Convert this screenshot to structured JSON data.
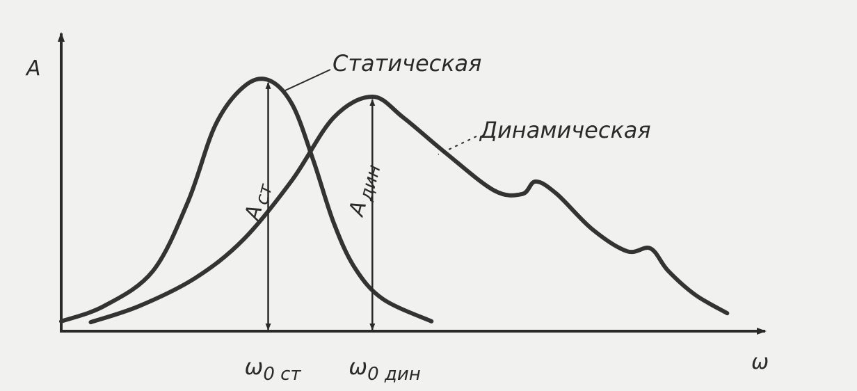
{
  "chart_data": {
    "type": "line",
    "xlabel": "ω",
    "ylabel": "A",
    "xlim": [
      0,
      10
    ],
    "ylim": [
      0,
      10
    ],
    "grid": false,
    "ticks": false,
    "series": [
      {
        "name": "Статическая",
        "color": "#333333",
        "x": [
          0,
          0.61,
          1.3,
          1.8,
          2.19,
          2.59,
          2.94,
          3.28,
          3.58,
          3.87,
          4.17,
          4.57,
          5.26
        ],
        "y": [
          0.34,
          0.87,
          2.07,
          4.47,
          7.12,
          8.44,
          8.68,
          7.84,
          5.91,
          3.75,
          2.19,
          1.11,
          0.34
        ]
      },
      {
        "name": "Динамическая",
        "color": "#333333",
        "x": [
          0.42,
          1.11,
          1.9,
          2.59,
          3.28,
          3.87,
          4.42,
          4.86,
          5.45,
          6.15,
          6.55,
          6.74,
          7.04,
          7.54,
          8.04,
          8.37,
          8.62,
          9.01,
          9.46
        ],
        "y": [
          0.31,
          0.87,
          1.83,
          3.17,
          5.22,
          7.38,
          8.1,
          7.38,
          6.18,
          4.86,
          4.74,
          5.17,
          4.74,
          3.53,
          2.76,
          2.86,
          2.09,
          1.25,
          0.62
        ]
      }
    ],
    "annotations": {
      "static_peak": {
        "x": 2.94,
        "y": 8.68,
        "amp_main": "A",
        "amp_sub": "ст",
        "freq_main": "ω",
        "freq_sub": "0 ст"
      },
      "dynamic_peak": {
        "x": 4.42,
        "y": 8.1,
        "amp_main": "A",
        "amp_sub": "дин",
        "freq_main": "ω",
        "freq_sub": "0 дин"
      }
    }
  }
}
